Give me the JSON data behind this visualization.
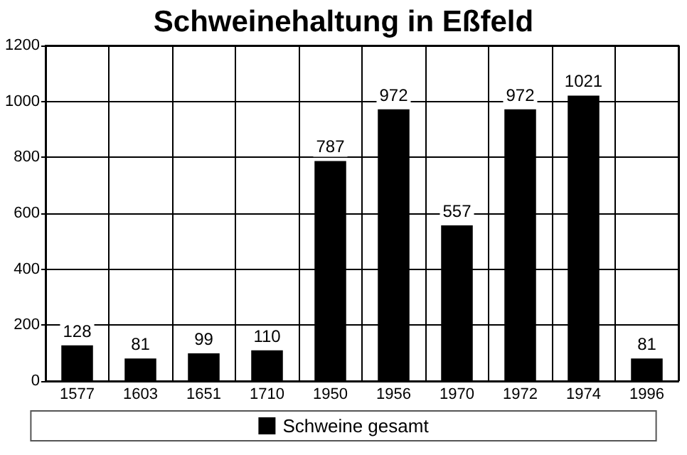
{
  "chart_data": {
    "type": "bar",
    "title": "Schweinehaltung in Eßfeld",
    "categories": [
      "1577",
      "1603",
      "1651",
      "1710",
      "1950",
      "1956",
      "1970",
      "1972",
      "1974",
      "1996"
    ],
    "series": [
      {
        "name": "Schweine gesamt",
        "color": "#000000",
        "values": [
          128,
          81,
          99,
          110,
          787,
          972,
          557,
          972,
          1021,
          81
        ]
      }
    ],
    "ylim": [
      0,
      1200
    ],
    "yticks": [
      0,
      200,
      400,
      600,
      800,
      1000,
      1200
    ],
    "grid": true,
    "legend": "bottom",
    "data_labels": true
  }
}
